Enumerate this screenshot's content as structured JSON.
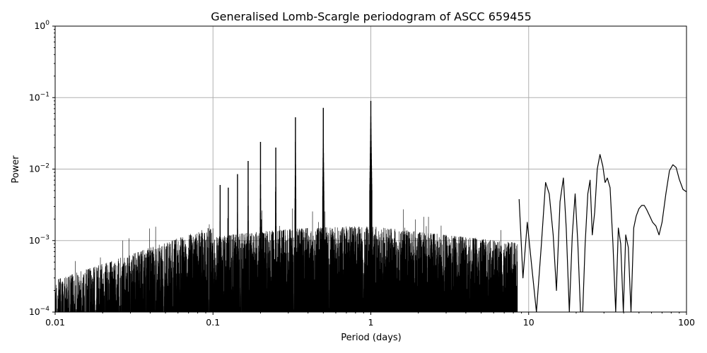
{
  "chart_data": {
    "type": "line",
    "title": "Generalised Lomb-Scargle periodogram of ASCC 659455",
    "xlabel": "Period (days)",
    "ylabel": "Power",
    "xscale": "log",
    "yscale": "log",
    "xlim": [
      0.01,
      100
    ],
    "ylim": [
      0.0001,
      1
    ],
    "grid": true,
    "line_color": "#000000",
    "x_ticks": [
      {
        "value": 0.01,
        "label": "0.01"
      },
      {
        "value": 0.1,
        "label": "0.1"
      },
      {
        "value": 1,
        "label": "1"
      },
      {
        "value": 10,
        "label": "10"
      },
      {
        "value": 100,
        "label": "100"
      }
    ],
    "y_ticks": [
      {
        "value": 0.0001,
        "base": "10",
        "exp": "−4"
      },
      {
        "value": 0.001,
        "base": "10",
        "exp": "−3"
      },
      {
        "value": 0.01,
        "base": "10",
        "exp": "−2"
      },
      {
        "value": 0.1,
        "base": "10",
        "exp": "−1"
      },
      {
        "value": 1,
        "base": "10",
        "exp": "0"
      }
    ],
    "peaks": [
      {
        "period": 1.0,
        "power": 0.09
      },
      {
        "period": 0.5,
        "power": 0.072
      },
      {
        "period": 0.333,
        "power": 0.053
      },
      {
        "period": 0.25,
        "power": 0.02
      },
      {
        "period": 0.2,
        "power": 0.024
      },
      {
        "period": 0.167,
        "power": 0.013
      },
      {
        "period": 0.143,
        "power": 0.0085
      },
      {
        "period": 0.125,
        "power": 0.0055
      },
      {
        "period": 0.111,
        "power": 0.006
      }
    ],
    "series": [
      {
        "x": [
          8.7,
          9.2,
          9.8,
          10.5,
          11.2,
          12.0,
          12.8,
          13.5,
          14.3,
          15.0,
          15.8,
          16.6,
          17.3,
          18.1,
          18.9,
          19.7,
          20.5,
          21.3,
          22.0,
          22.8,
          23.7,
          24.5,
          25.3,
          26.2,
          27.2,
          28.3,
          29.5,
          30.5,
          31.5,
          32.8,
          34.2,
          35.6,
          37.0,
          38.3,
          39.8,
          41.2,
          42.8,
          44.5,
          46.3,
          48.0,
          50.0,
          52.0,
          54.0,
          56.0,
          58.5,
          61.0,
          64.0,
          67.0,
          70.0,
          74.0,
          78.0,
          82.0,
          86.0,
          90.0,
          95.0,
          100.0
        ],
        "y": [
          0.0038,
          0.0003,
          0.0018,
          0.0004,
          0.0001,
          0.0008,
          0.0065,
          0.0045,
          0.0012,
          0.0002,
          0.0035,
          0.0075,
          0.0015,
          0.0001,
          0.0012,
          0.0045,
          0.0009,
          0.0001,
          0.0001,
          0.0009,
          0.0045,
          0.007,
          0.0012,
          0.0025,
          0.01,
          0.016,
          0.011,
          0.0065,
          0.0075,
          0.0055,
          0.0009,
          0.0001,
          0.0015,
          0.0009,
          0.0001,
          0.0012,
          0.0008,
          0.0001,
          0.0015,
          0.0022,
          0.0028,
          0.0031,
          0.0031,
          0.0027,
          0.0022,
          0.0018,
          0.0016,
          0.0012,
          0.0018,
          0.0045,
          0.0095,
          0.0115,
          0.0105,
          0.0072,
          0.0052,
          0.0048
        ]
      }
    ]
  }
}
